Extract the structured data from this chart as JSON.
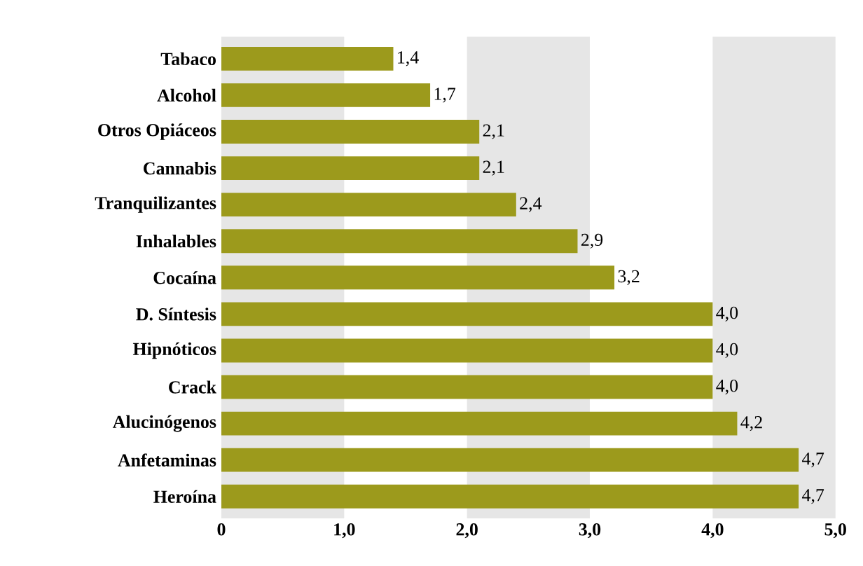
{
  "chart_data": {
    "type": "bar",
    "orientation": "horizontal",
    "categories": [
      "Tabaco",
      "Alcohol",
      "Otros Opiáceos",
      "Cannabis",
      "Tranquilizantes",
      "Inhalables",
      "Cocaína",
      "D. Síntesis",
      "Hipnóticos",
      "Crack",
      "Alucinógenos",
      "Anfetaminas",
      "Heroína"
    ],
    "values": [
      1.4,
      1.7,
      2.1,
      2.1,
      2.4,
      2.9,
      3.2,
      4.0,
      4.0,
      4.0,
      4.2,
      4.7,
      4.7
    ],
    "value_labels": [
      "1,4",
      "1,7",
      "2,1",
      "2,1",
      "2,4",
      "2,9",
      "3,2",
      "4,0",
      "4,0",
      "4,0",
      "4,2",
      "4,7",
      "4,7"
    ],
    "color": "#9c9a1c",
    "xlim": [
      0,
      5
    ],
    "xticks": [
      0,
      {
        "value": 1,
        "label": "1,0"
      },
      {
        "value": 2,
        "label": "2,0"
      },
      {
        "value": 3,
        "label": "3,0"
      },
      {
        "value": 4,
        "label": "4,0"
      },
      {
        "value": 5,
        "label": "5,0"
      }
    ],
    "bands": [
      {
        "axis": "x",
        "from": 0,
        "to": 1,
        "color": "#e6e6e6"
      },
      {
        "axis": "x",
        "from": 2,
        "to": 3,
        "color": "#e6e6e6"
      },
      {
        "axis": "x",
        "from": 4,
        "to": 5,
        "color": "#e6e6e6"
      }
    ]
  }
}
